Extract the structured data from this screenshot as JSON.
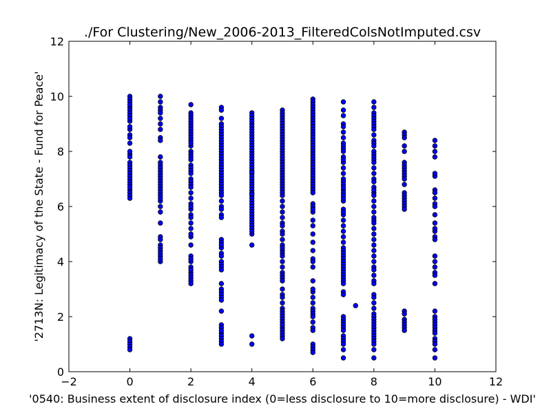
{
  "chart_data": {
    "type": "scatter",
    "title": "./For Clustering/New_2006-2013_FilteredColsNotImputed.csv",
    "xlabel": "'0540: Business extent of disclosure index  (0=less disclosure to 10=more disclosure) - WDI'",
    "ylabel": "'2713N: Legitimacy of the State - Fund for Peace'",
    "xlim": [
      -2,
      12
    ],
    "ylim": [
      0,
      12
    ],
    "xticks": [
      -2,
      0,
      2,
      4,
      6,
      8,
      10,
      12
    ],
    "yticks": [
      0,
      2,
      4,
      6,
      8,
      10,
      12
    ],
    "xtick_labels": [
      "−2",
      "0",
      "2",
      "4",
      "6",
      "8",
      "10",
      "12"
    ],
    "ytick_labels": [
      "0",
      "2",
      "4",
      "6",
      "8",
      "10",
      "12"
    ],
    "grid": false,
    "legend": "none",
    "marker_color": "#0000ff",
    "marker_edge_color": "#000000",
    "series": [
      {
        "x": [
          0,
          0,
          0,
          0,
          0,
          0,
          0,
          0,
          0,
          0,
          0,
          0,
          0,
          0,
          0,
          0,
          0,
          0,
          0,
          0,
          0,
          0,
          0,
          0,
          0,
          0,
          0,
          0,
          0,
          0,
          0,
          0,
          0,
          0,
          0,
          0,
          0
        ],
        "y": [
          10.0,
          9.9,
          9.8,
          9.6,
          9.5,
          9.4,
          9.3,
          9.1,
          8.8,
          8.6,
          8.5,
          8.3,
          7.9,
          7.6,
          7.5,
          7.4,
          7.3,
          7.2,
          7.1,
          7.0,
          6.9,
          6.8,
          6.6,
          6.5,
          6.4,
          6.3,
          1.2,
          1.1,
          1.0,
          0.9,
          0.8,
          8.9,
          8.0,
          7.8,
          6.7,
          9.7,
          9.2
        ]
      },
      {
        "x": [
          1,
          1,
          1,
          1,
          1,
          1,
          1,
          1,
          1,
          1,
          1,
          1,
          1,
          1,
          1,
          1,
          1,
          1,
          1,
          1,
          1,
          1,
          1,
          1,
          1,
          1,
          1,
          1,
          1,
          1,
          1,
          1,
          1,
          1,
          1,
          1,
          1,
          1
        ],
        "y": [
          10.0,
          9.8,
          9.6,
          9.5,
          9.2,
          9.0,
          8.8,
          8.5,
          8.4,
          7.6,
          7.5,
          7.4,
          7.3,
          7.2,
          7.1,
          7.0,
          6.9,
          6.8,
          6.7,
          6.6,
          6.5,
          6.4,
          6.2,
          6.0,
          5.8,
          5.4,
          4.9,
          4.6,
          4.5,
          4.4,
          4.3,
          4.2,
          4.0,
          9.4,
          7.8,
          6.3,
          4.8,
          4.1
        ]
      },
      {
        "x": [
          2,
          2,
          2,
          2,
          2,
          2,
          2,
          2,
          2,
          2,
          2,
          2,
          2,
          2,
          2,
          2,
          2,
          2,
          2,
          2,
          2,
          2,
          2,
          2,
          2,
          2,
          2,
          2,
          2,
          2,
          2,
          2,
          2,
          2,
          2,
          2,
          2,
          2,
          2,
          2,
          2,
          2,
          2,
          2,
          2,
          2,
          2,
          2
        ],
        "y": [
          9.7,
          9.4,
          9.3,
          9.2,
          9.1,
          9.0,
          8.9,
          8.8,
          8.7,
          8.6,
          8.5,
          8.4,
          8.2,
          8.0,
          7.9,
          7.8,
          7.5,
          7.4,
          7.3,
          7.2,
          7.0,
          6.9,
          6.8,
          6.7,
          6.5,
          6.3,
          6.1,
          5.9,
          5.7,
          5.6,
          5.4,
          5.2,
          4.9,
          4.6,
          4.2,
          4.0,
          3.8,
          3.6,
          3.5,
          3.4,
          3.3,
          3.2,
          7.7,
          6.0,
          5.0,
          4.1,
          3.7,
          8.3
        ]
      },
      {
        "x": [
          3,
          3,
          3,
          3,
          3,
          3,
          3,
          3,
          3,
          3,
          3,
          3,
          3,
          3,
          3,
          3,
          3,
          3,
          3,
          3,
          3,
          3,
          3,
          3,
          3,
          3,
          3,
          3,
          3,
          3,
          3,
          3,
          3,
          3,
          3,
          3,
          3,
          3,
          3,
          3,
          3,
          3,
          3,
          3,
          3,
          3,
          3,
          3,
          3,
          3,
          3,
          3,
          3,
          3,
          3,
          3,
          3,
          3,
          3,
          3
        ],
        "y": [
          9.6,
          9.5,
          9.2,
          9.0,
          8.9,
          8.8,
          8.7,
          8.6,
          8.5,
          8.4,
          8.3,
          8.2,
          8.1,
          8.0,
          7.9,
          7.8,
          7.7,
          7.6,
          7.5,
          7.4,
          7.3,
          7.2,
          7.1,
          7.0,
          6.9,
          6.8,
          6.7,
          6.6,
          6.5,
          6.4,
          6.2,
          6.0,
          5.9,
          5.7,
          5.6,
          4.8,
          4.7,
          4.5,
          4.3,
          4.2,
          4.0,
          3.9,
          3.8,
          3.2,
          3.0,
          2.9,
          2.8,
          2.7,
          2.6,
          2.2,
          1.7,
          1.6,
          1.4,
          1.3,
          1.2,
          1.1,
          1.0,
          4.6,
          3.7,
          1.5
        ]
      },
      {
        "x": [
          4,
          4,
          4,
          4,
          4,
          4,
          4,
          4,
          4,
          4,
          4,
          4,
          4,
          4,
          4,
          4,
          4,
          4,
          4,
          4,
          4,
          4,
          4,
          4,
          4,
          4,
          4,
          4,
          4,
          4,
          4,
          4,
          4,
          4,
          4,
          4,
          4,
          4,
          4,
          4,
          4,
          4,
          4,
          4,
          4,
          4,
          4,
          4,
          4,
          4
        ],
        "y": [
          9.4,
          9.3,
          9.2,
          9.0,
          8.9,
          8.8,
          8.7,
          8.6,
          8.5,
          8.4,
          8.3,
          8.2,
          8.1,
          8.0,
          7.9,
          7.8,
          7.7,
          7.6,
          7.5,
          7.4,
          7.3,
          7.2,
          7.1,
          7.0,
          6.9,
          6.8,
          6.7,
          6.6,
          6.5,
          6.4,
          6.3,
          6.2,
          6.1,
          6.0,
          5.9,
          5.8,
          5.7,
          5.6,
          5.5,
          5.4,
          5.3,
          5.2,
          5.0,
          4.6,
          1.3,
          1.0,
          9.1,
          5.1,
          7.25,
          6.45
        ]
      },
      {
        "x": [
          5,
          5,
          5,
          5,
          5,
          5,
          5,
          5,
          5,
          5,
          5,
          5,
          5,
          5,
          5,
          5,
          5,
          5,
          5,
          5,
          5,
          5,
          5,
          5,
          5,
          5,
          5,
          5,
          5,
          5,
          5,
          5,
          5,
          5,
          5,
          5,
          5,
          5,
          5,
          5,
          5,
          5,
          5,
          5,
          5,
          5,
          5,
          5,
          5,
          5,
          5,
          5,
          5,
          5,
          5,
          5,
          5,
          5,
          5,
          5,
          5,
          5,
          5,
          5,
          5,
          5,
          5,
          5
        ],
        "y": [
          9.5,
          9.4,
          9.3,
          9.2,
          9.1,
          9.0,
          8.9,
          8.8,
          8.7,
          8.6,
          8.5,
          8.4,
          8.3,
          8.2,
          8.1,
          8.0,
          7.9,
          7.8,
          7.7,
          7.6,
          7.5,
          7.4,
          7.3,
          7.2,
          7.1,
          7.0,
          6.9,
          6.8,
          6.7,
          6.6,
          6.5,
          6.4,
          6.2,
          6.0,
          5.8,
          5.6,
          5.4,
          5.3,
          5.1,
          5.0,
          4.8,
          4.6,
          4.4,
          4.3,
          4.2,
          4.0,
          3.8,
          3.6,
          3.5,
          3.4,
          3.3,
          3.0,
          2.8,
          2.7,
          2.5,
          2.3,
          2.2,
          2.1,
          2.0,
          1.9,
          1.8,
          1.6,
          1.5,
          1.4,
          1.3,
          1.2,
          4.5,
          1.7
        ]
      },
      {
        "x": [
          6,
          6,
          6,
          6,
          6,
          6,
          6,
          6,
          6,
          6,
          6,
          6,
          6,
          6,
          6,
          6,
          6,
          6,
          6,
          6,
          6,
          6,
          6,
          6,
          6,
          6,
          6,
          6,
          6,
          6,
          6,
          6,
          6,
          6,
          6,
          6,
          6,
          6,
          6,
          6,
          6,
          6,
          6,
          6,
          6,
          6,
          6,
          6,
          6,
          6,
          6,
          6,
          6,
          6,
          6,
          6,
          6,
          6,
          6,
          6,
          6,
          6,
          6
        ],
        "y": [
          9.9,
          9.8,
          9.7,
          9.6,
          9.5,
          9.4,
          9.3,
          9.2,
          9.1,
          9.0,
          8.9,
          8.8,
          8.7,
          8.6,
          8.5,
          8.4,
          8.3,
          8.2,
          8.1,
          8.0,
          7.9,
          7.8,
          7.7,
          7.6,
          7.5,
          7.4,
          7.3,
          7.2,
          7.1,
          7.0,
          6.9,
          6.8,
          6.7,
          6.6,
          6.5,
          6.1,
          6.0,
          5.8,
          5.5,
          5.3,
          5.0,
          4.7,
          4.4,
          4.1,
          3.8,
          3.3,
          2.9,
          2.7,
          2.5,
          2.3,
          2.2,
          2.1,
          2.0,
          1.8,
          1.6,
          1.5,
          1.0,
          0.9,
          0.8,
          0.7,
          5.9,
          4.0,
          3.0
        ]
      },
      {
        "x": [
          7,
          7,
          7,
          7,
          7,
          7,
          7,
          7,
          7,
          7,
          7,
          7,
          7,
          7,
          7,
          7,
          7,
          7,
          7,
          7,
          7,
          7,
          7,
          7,
          7,
          7,
          7,
          7,
          7,
          7,
          7,
          7,
          7,
          7,
          7,
          7,
          7,
          7,
          7,
          7,
          7,
          7,
          7,
          7,
          7,
          7,
          7,
          7,
          7,
          7,
          7,
          7,
          7,
          7,
          7,
          7,
          7,
          7,
          7,
          7,
          7,
          7.4
        ],
        "y": [
          9.8,
          9.5,
          9.3,
          9.0,
          8.9,
          8.7,
          8.5,
          8.3,
          8.2,
          8.1,
          8.0,
          7.8,
          7.6,
          7.4,
          7.2,
          7.0,
          6.9,
          6.8,
          6.6,
          6.5,
          6.4,
          6.2,
          5.9,
          5.7,
          5.5,
          5.3,
          5.1,
          4.9,
          4.7,
          4.5,
          4.4,
          4.3,
          4.2,
          4.1,
          4.0,
          3.9,
          3.8,
          3.7,
          3.6,
          3.5,
          3.4,
          3.3,
          3.2,
          2.9,
          2.8,
          2.0,
          1.9,
          1.8,
          1.7,
          1.6,
          1.5,
          1.3,
          1.2,
          1.1,
          1.0,
          0.8,
          0.5,
          6.7,
          6.3,
          5.8,
          7.7,
          2.4
        ]
      },
      {
        "x": [
          8,
          8,
          8,
          8,
          8,
          8,
          8,
          8,
          8,
          8,
          8,
          8,
          8,
          8,
          8,
          8,
          8,
          8,
          8,
          8,
          8,
          8,
          8,
          8,
          8,
          8,
          8,
          8,
          8,
          8,
          8,
          8,
          8,
          8,
          8,
          8,
          8,
          8,
          8,
          8,
          8,
          8,
          8,
          8,
          8,
          8,
          8,
          8,
          8,
          8,
          8,
          8,
          8,
          8,
          8,
          8,
          8,
          8,
          8,
          8,
          8,
          8
        ],
        "y": [
          9.8,
          9.6,
          9.4,
          9.3,
          9.2,
          9.1,
          9.0,
          8.9,
          8.8,
          8.6,
          8.4,
          8.3,
          8.2,
          8.0,
          7.9,
          7.8,
          7.7,
          7.6,
          7.4,
          7.2,
          7.0,
          6.9,
          6.7,
          6.5,
          6.4,
          6.2,
          6.0,
          5.8,
          5.6,
          5.5,
          5.4,
          5.2,
          5.0,
          4.8,
          4.6,
          4.4,
          4.2,
          4.0,
          3.8,
          3.7,
          3.5,
          3.3,
          3.2,
          2.8,
          2.7,
          2.5,
          2.3,
          2.1,
          2.0,
          1.9,
          1.8,
          1.7,
          1.6,
          1.5,
          1.4,
          1.3,
          1.2,
          1.1,
          1.0,
          0.8,
          0.5,
          6.6
        ]
      },
      {
        "x": [
          9,
          9,
          9,
          9,
          9,
          9,
          9,
          9,
          9,
          9,
          9,
          9,
          9,
          9,
          9,
          9,
          9,
          9,
          9,
          9,
          9,
          9,
          9,
          9,
          9,
          9,
          9
        ],
        "y": [
          8.7,
          8.6,
          8.5,
          8.2,
          8.0,
          7.6,
          7.5,
          7.4,
          7.3,
          7.2,
          7.1,
          7.0,
          6.5,
          6.4,
          6.3,
          6.2,
          6.1,
          6.0,
          5.9,
          2.2,
          2.1,
          1.9,
          1.8,
          1.7,
          1.6,
          1.5,
          6.8
        ]
      },
      {
        "x": [
          10,
          10,
          10,
          10,
          10,
          10,
          10,
          10,
          10,
          10,
          10,
          10,
          10,
          10,
          10,
          10,
          10,
          10,
          10,
          10,
          10,
          10,
          10,
          10,
          10,
          10,
          10,
          10,
          10,
          10,
          10,
          10,
          10,
          10,
          10,
          10
        ],
        "y": [
          8.4,
          8.2,
          8.0,
          7.8,
          7.1,
          6.6,
          6.5,
          6.3,
          6.1,
          6.0,
          5.7,
          5.4,
          5.1,
          4.9,
          4.8,
          4.2,
          4.0,
          3.8,
          3.6,
          3.5,
          3.2,
          2.2,
          2.0,
          1.9,
          1.8,
          1.7,
          1.6,
          1.5,
          1.2,
          1.1,
          1.0,
          0.8,
          0.5,
          7.2,
          5.2,
          1.4
        ]
      }
    ]
  }
}
